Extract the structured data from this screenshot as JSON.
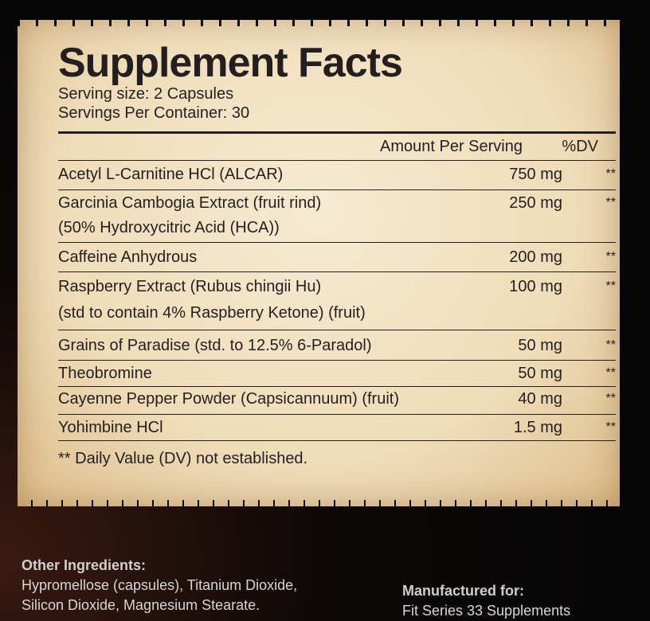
{
  "panel": {
    "title": "Supplement Facts",
    "serving_size": "Serving size: 2 Capsules",
    "servings_per_container": "Servings Per Container: 30",
    "col_amount": "Amount Per Serving",
    "col_dv": "%DV",
    "rows": [
      {
        "name": [
          "Acetyl L-Carnitine HCl (ALCAR)"
        ],
        "amount": "750 mg",
        "dv": "**"
      },
      {
        "name": [
          "Garcinia Cambogia Extract (fruit rind)",
          "(50% Hydroxycitric Acid (HCA))"
        ],
        "amount": "250 mg",
        "dv": "**"
      },
      {
        "name": [
          "Caffeine Anhydrous"
        ],
        "amount": "200 mg",
        "dv": "**"
      },
      {
        "name": [
          "Raspberry Extract (Rubus chingii Hu)",
          "(std to contain 4% Raspberry Ketone) (fruit)"
        ],
        "amount": "100 mg",
        "dv": "**"
      },
      {
        "name": [
          "Grains of Paradise (std. to 12.5% 6-Paradol)"
        ],
        "amount": "50 mg",
        "dv": "**"
      },
      {
        "name": [
          "Theobromine"
        ],
        "amount": "50 mg",
        "dv": "**"
      },
      {
        "name": [
          "Cayenne Pepper Powder (Capsicannuum) (fruit)"
        ],
        "amount": "40 mg",
        "dv": "**"
      },
      {
        "name": [
          "Yohimbine HCl"
        ],
        "amount": "1.5 mg",
        "dv": "**"
      }
    ],
    "footnote": "** Daily Value (DV) not established."
  },
  "other_ingredients": {
    "label": "Other Ingredients:",
    "line1": "Hypromellose (capsules), Titanium Dioxide,",
    "line2": "Silicon Dioxide, Magnesium Stearate."
  },
  "manufacturer": {
    "label": "Manufactured for:",
    "name": "Fit Series 33 Supplements"
  }
}
